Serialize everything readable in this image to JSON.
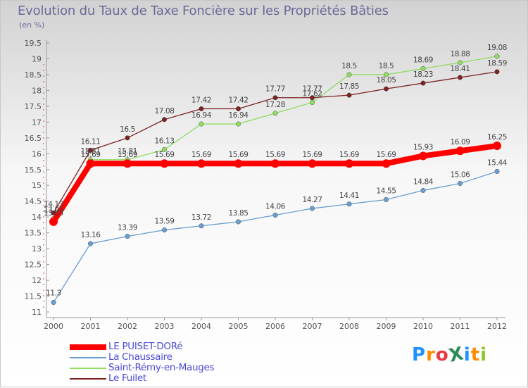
{
  "header": {
    "title": "Evolution du Taux de Taxe Foncière sur les Propriétés Bâties",
    "unit": "(en %)"
  },
  "logo": {
    "text": "ProXiti",
    "colors": [
      "#1e90ff",
      "#ff8c00",
      "#e63946",
      "#2e8b57",
      "#1e90ff",
      "#ff8c00",
      "#8ac926"
    ]
  },
  "chart_data": {
    "type": "line",
    "title": "Evolution du Taux de Taxe Foncière sur les Propriétés Bâties",
    "ylabel": "(en %)",
    "xlabel": "",
    "x": [
      "2000",
      "2001",
      "2002",
      "2003",
      "2004",
      "2005",
      "2006",
      "2007",
      "2008",
      "2009",
      "2010",
      "2011",
      "2012"
    ],
    "ylim": [
      11,
      19.5
    ],
    "yticks": [
      "11",
      "11.5",
      "12",
      "12.5",
      "13",
      "13.5",
      "14",
      "14.5",
      "15",
      "15.5",
      "16",
      "16.5",
      "17",
      "17.5",
      "18",
      "18.5",
      "19",
      "19.5"
    ],
    "grid": false,
    "legend_position": "bottom-left",
    "series": [
      {
        "name": "LE PUISET-DORé",
        "color": "#ff0000",
        "values": [
          13.85,
          15.69,
          15.69,
          15.69,
          15.69,
          15.69,
          15.69,
          15.69,
          15.69,
          15.69,
          15.93,
          16.09,
          16.25
        ],
        "labels": [
          "13.85",
          "15.69",
          "15.69",
          "15.69",
          "15.69",
          "15.69",
          "15.69",
          "15.69",
          "15.69",
          "15.69",
          "15.93",
          "16.09",
          "16.25"
        ]
      },
      {
        "name": "La Chaussaire",
        "color": "#6a9ecf",
        "values": [
          11.3,
          13.16,
          13.39,
          13.59,
          13.72,
          13.85,
          14.06,
          14.27,
          14.41,
          14.55,
          14.84,
          15.06,
          15.44
        ],
        "labels": [
          "11.3",
          "13.16",
          "13.39",
          "13.59",
          "13.72",
          "13.85",
          "14.06",
          "14.27",
          "14.41",
          "14.55",
          "14.84",
          "15.06",
          "15.44"
        ]
      },
      {
        "name": "Saint-Rémy-en-Mauges",
        "color": "#8fdc60",
        "values": [
          13.95,
          15.81,
          15.81,
          16.13,
          16.94,
          16.94,
          17.28,
          17.62,
          18.5,
          18.5,
          18.69,
          18.88,
          19.08
        ],
        "labels": [
          "13.95",
          "15.81",
          "15.81",
          "16.13",
          "16.94",
          "16.94",
          "17.28",
          "17.62",
          "18.5",
          "18.5",
          "18.69",
          "18.88",
          "19.08"
        ]
      },
      {
        "name": "Le Fuilet",
        "color": "#7b2222",
        "values": [
          14.13,
          16.11,
          16.5,
          17.08,
          17.42,
          17.42,
          17.77,
          17.77,
          17.85,
          18.05,
          18.23,
          18.41,
          18.59
        ],
        "labels": [
          "14.13",
          "16.11",
          "16.5",
          "17.08",
          "17.42",
          "17.42",
          "17.77",
          "17.77",
          "17.85",
          "18.05",
          "18.23",
          "18.41",
          "18.59"
        ]
      }
    ]
  }
}
